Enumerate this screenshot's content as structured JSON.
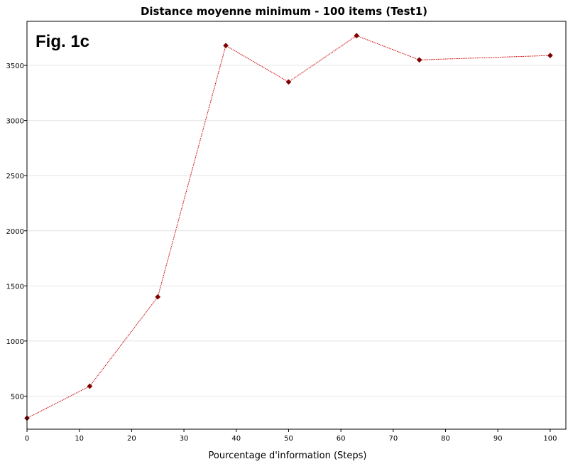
{
  "figure_label": "Fig. 1c",
  "chart_data": {
    "type": "line",
    "title": "Distance moyenne minimum - 100 items (Test1)",
    "xlabel": "Pourcentage d'information (Steps)",
    "ylabel": "",
    "xlim": [
      0,
      103
    ],
    "ylim": [
      200,
      3900
    ],
    "xticks": [
      0,
      10,
      20,
      30,
      40,
      50,
      60,
      70,
      80,
      90,
      100
    ],
    "yticks": [
      500,
      1000,
      1500,
      2000,
      2500,
      3000,
      3500
    ],
    "grid": true,
    "legend": "none",
    "series": [
      {
        "color": "#cc0000",
        "marker_color": "#800000",
        "marker": "diamond",
        "x": [
          0,
          12,
          25,
          38,
          50,
          63,
          75,
          100
        ],
        "y": [
          300,
          590,
          1400,
          3680,
          3350,
          3770,
          3550,
          3590
        ]
      }
    ]
  }
}
